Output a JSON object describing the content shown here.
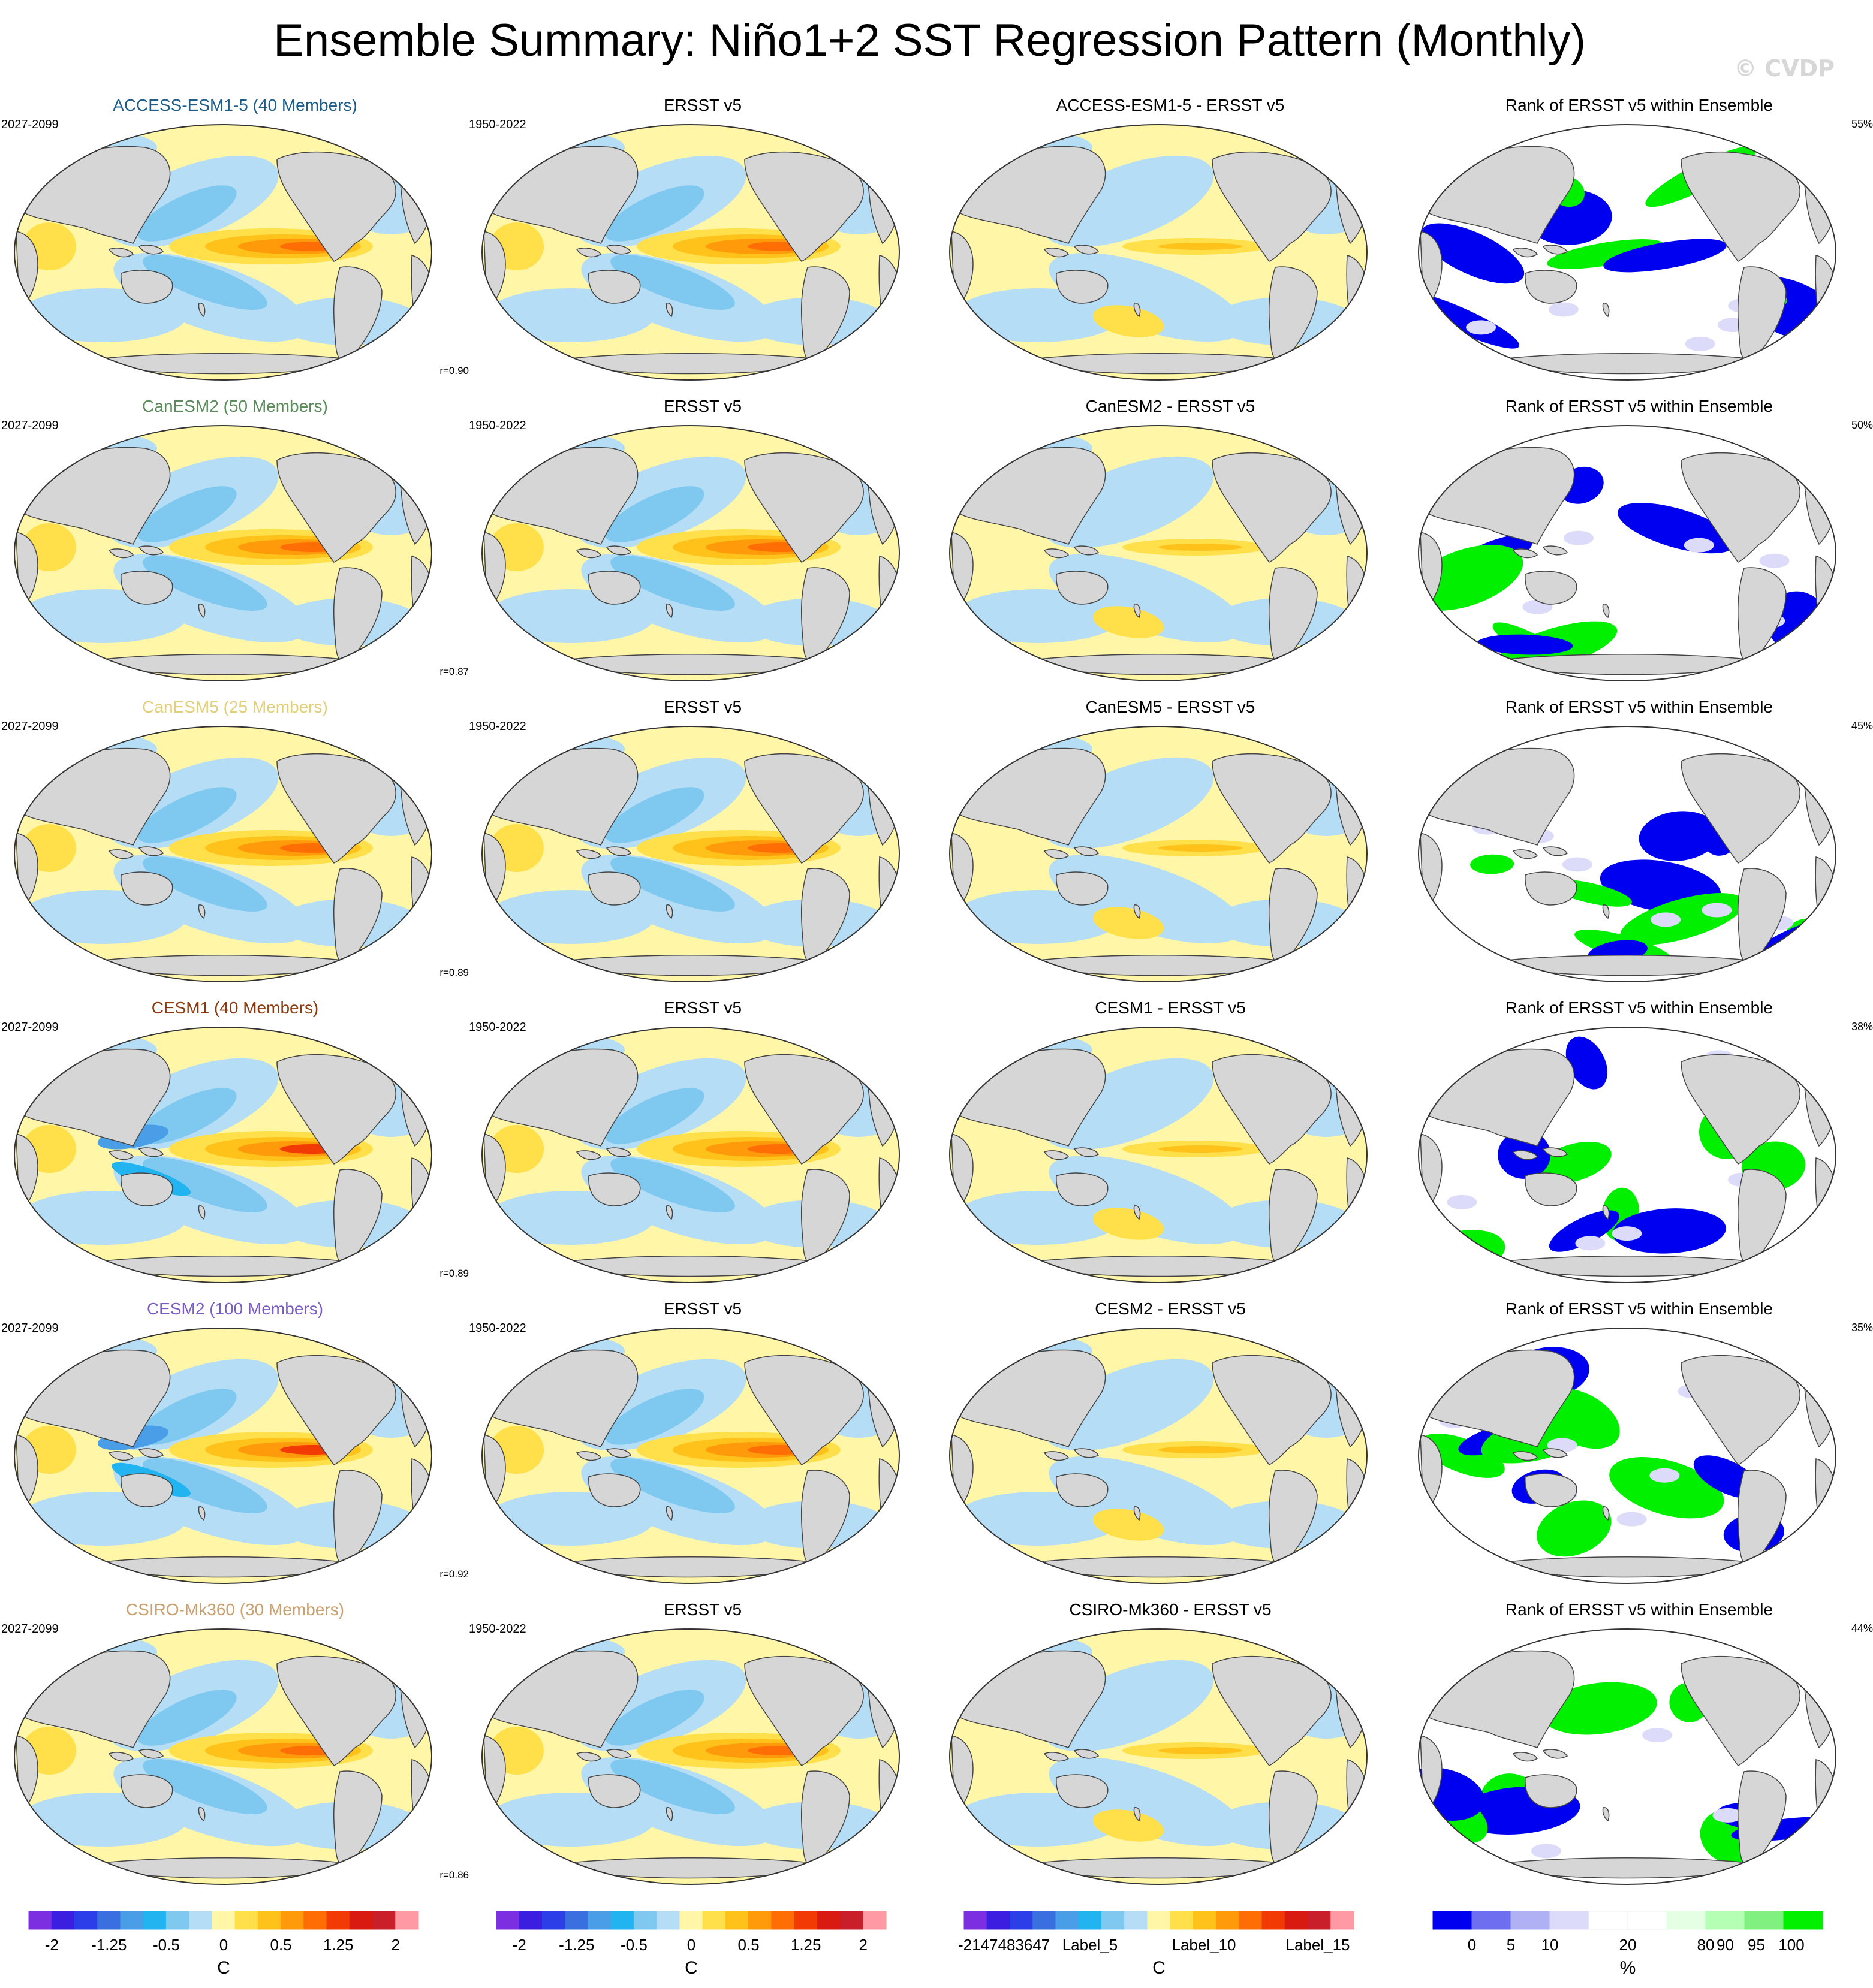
{
  "title": "Ensemble Summary: Niño1+2 SST Regression Pattern (Monthly)",
  "watermark": "© CVDP",
  "rows": [
    {
      "model": {
        "title": "ACCESS-ESM1-5 (40 Members)",
        "color": "#1d5d8a",
        "years": "2027-2099",
        "r": "r=0.90"
      },
      "obs": {
        "title": "ERSST v5",
        "years": "1950-2022"
      },
      "diff": {
        "title": "ACCESS-ESM1-5 - ERSST v5"
      },
      "rank": {
        "title": "Rank of ERSST v5 within Ensemble",
        "pct": "55%"
      }
    },
    {
      "model": {
        "title": "CanESM2 (50 Members)",
        "color": "#5b8a5b",
        "years": "2027-2099",
        "r": "r=0.87"
      },
      "obs": {
        "title": "ERSST v5",
        "years": "1950-2022"
      },
      "diff": {
        "title": "CanESM2 - ERSST v5"
      },
      "rank": {
        "title": "Rank of ERSST v5 within Ensemble",
        "pct": "50%"
      }
    },
    {
      "model": {
        "title": "CanESM5 (25 Members)",
        "color": "#e3cf7a",
        "years": "2027-2099",
        "r": "r=0.89"
      },
      "obs": {
        "title": "ERSST v5",
        "years": "1950-2022"
      },
      "diff": {
        "title": "CanESM5 - ERSST v5"
      },
      "rank": {
        "title": "Rank of ERSST v5 within Ensemble",
        "pct": "45%"
      }
    },
    {
      "model": {
        "title": "CESM1 (40 Members)",
        "color": "#8b3a0f",
        "years": "2027-2099",
        "r": "r=0.89"
      },
      "obs": {
        "title": "ERSST v5",
        "years": "1950-2022"
      },
      "diff": {
        "title": "CESM1 - ERSST v5"
      },
      "rank": {
        "title": "Rank of ERSST v5 within Ensemble",
        "pct": "38%"
      }
    },
    {
      "model": {
        "title": "CESM2 (100 Members)",
        "color": "#7a5cc7",
        "years": "2027-2099",
        "r": "r=0.92"
      },
      "obs": {
        "title": "ERSST v5",
        "years": "1950-2022"
      },
      "diff": {
        "title": "CESM2 - ERSST v5"
      },
      "rank": {
        "title": "Rank of ERSST v5 within Ensemble",
        "pct": "35%"
      }
    },
    {
      "model": {
        "title": "CSIRO-Mk360 (30 Members)",
        "color": "#c9a070",
        "years": "2027-2099",
        "r": "r=0.86"
      },
      "obs": {
        "title": "ERSST v5",
        "years": "1950-2022"
      },
      "diff": {
        "title": "CSIRO-Mk360 - ERSST v5"
      },
      "rank": {
        "title": "Rank of ERSST v5 within Ensemble",
        "pct": "44%"
      }
    }
  ],
  "colorbars": [
    {
      "unit": "C",
      "labels": [
        "-2",
        "-1.25",
        "-0.5",
        "0",
        "0.5",
        "1.25",
        "2"
      ],
      "colors": [
        "#7b2fe0",
        "#3c1ee0",
        "#2b3ee8",
        "#3a6fe0",
        "#4a9ee8",
        "#22b4f0",
        "#7fc8f0",
        "#b5ddf5",
        "#fff6a8",
        "#ffe04a",
        "#ffc21a",
        "#ff9a0a",
        "#ff6e05",
        "#f23a05",
        "#d81a10",
        "#c81f2a",
        "#ff9aa5"
      ]
    },
    {
      "unit": "C",
      "labels": [
        "-2",
        "-1.25",
        "-0.5",
        "0",
        "0.5",
        "1.25",
        "2"
      ],
      "colors": [
        "#7b2fe0",
        "#3c1ee0",
        "#2b3ee8",
        "#3a6fe0",
        "#4a9ee8",
        "#22b4f0",
        "#7fc8f0",
        "#b5ddf5",
        "#fff6a8",
        "#ffe04a",
        "#ffc21a",
        "#ff9a0a",
        "#ff6e05",
        "#f23a05",
        "#d81a10",
        "#c81f2a",
        "#ff9aa5"
      ]
    },
    {
      "unit": "C",
      "labels": [
        "-2147483647",
        "Label_5",
        "Label_10",
        "Label_15"
      ],
      "colors": [
        "#7b2fe0",
        "#3c1ee0",
        "#2b3ee8",
        "#3a6fe0",
        "#4a9ee8",
        "#22b4f0",
        "#7fc8f0",
        "#b5ddf5",
        "#fff6a8",
        "#ffe04a",
        "#ffc21a",
        "#ff9a0a",
        "#ff6e05",
        "#f23a05",
        "#d81a10",
        "#c81f2a",
        "#ff9aa5"
      ]
    },
    {
      "unit": "%",
      "labels": [
        "0",
        "5",
        "10",
        "20",
        "80",
        "90",
        "95",
        "100"
      ],
      "colors": [
        "#0000f0",
        "#6e6ef0",
        "#b0b0f5",
        "#dcdcfa",
        "#ffffff",
        "#ffffff",
        "#e4ffe4",
        "#b4ffb4",
        "#80f080",
        "#00f000"
      ]
    }
  ]
}
